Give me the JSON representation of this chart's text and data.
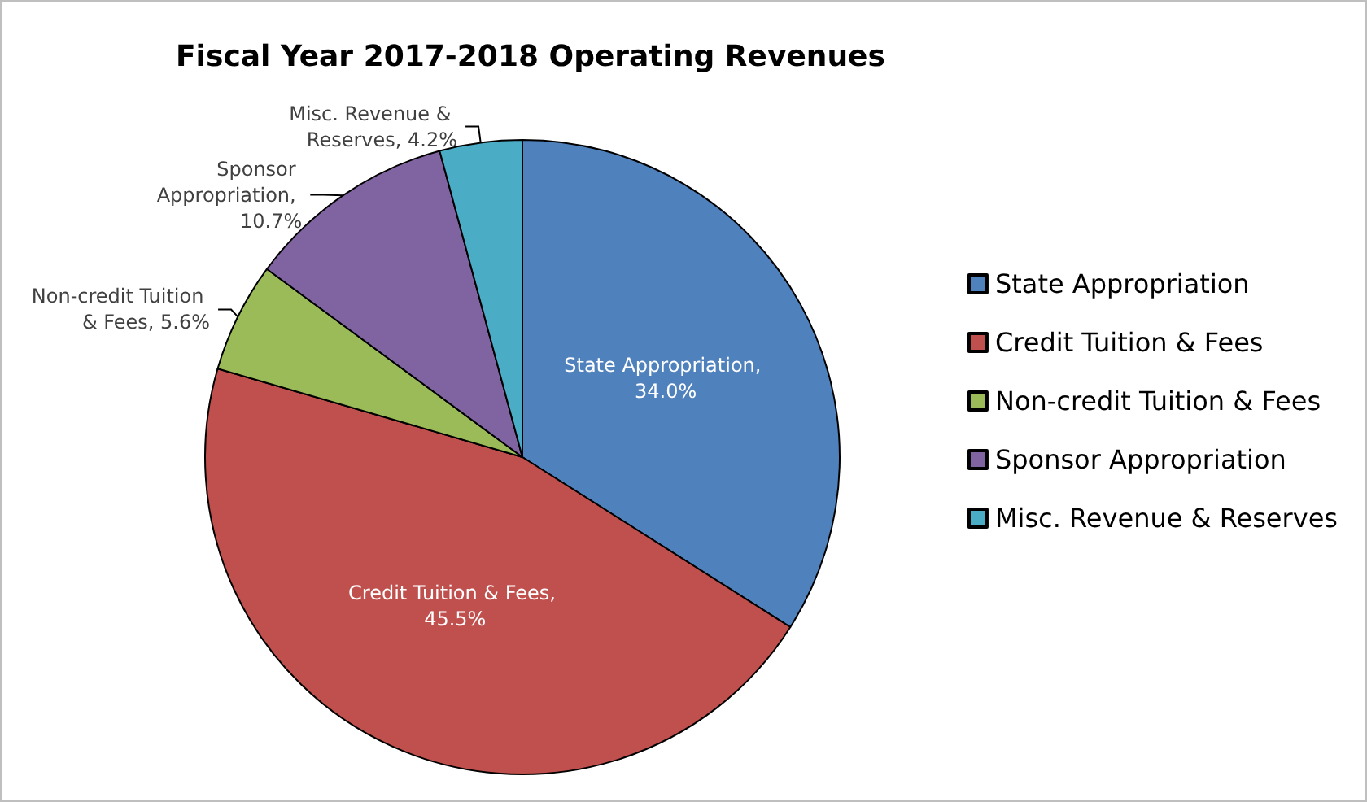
{
  "chart_data": {
    "type": "pie",
    "title": "Fiscal Year 2017-2018 Operating Revenues",
    "categories": [
      "State Appropriation",
      "Credit Tuition & Fees",
      "Non-credit Tuition & Fees",
      "Sponsor Appropriation",
      "Misc. Revenue & Reserves"
    ],
    "values": [
      34.0,
      45.5,
      5.6,
      10.7,
      4.2
    ],
    "value_labels": [
      "State Appropriation, 34.0%",
      "Credit Tuition & Fees, 45.5%",
      "Non-credit Tuition & Fees, 5.6%",
      "Sponsor Appropriation, 10.7%",
      "Misc. Revenue & Reserves, 4.2%"
    ],
    "colors": [
      "#4f81bd",
      "#c0504d",
      "#9bbb59",
      "#8064a2",
      "#4bacc6"
    ],
    "data_labels": true,
    "legend": "right"
  }
}
